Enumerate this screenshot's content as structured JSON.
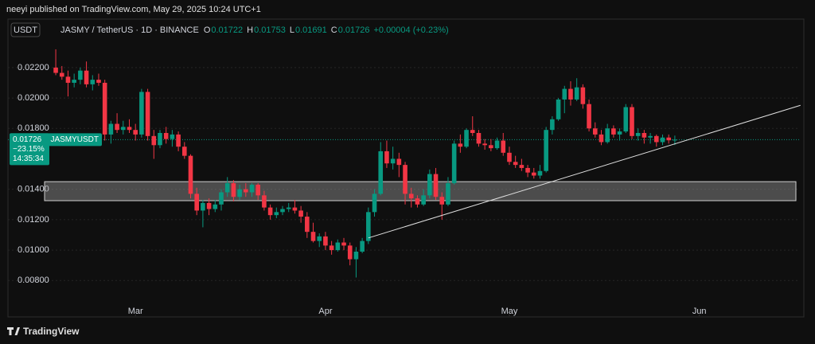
{
  "header": {
    "publisher": "neeyi published on TradingView.com, May 29, 2025 10:24 UTC+1",
    "currency": "USDT",
    "footer": "TradingView"
  },
  "chart_data": {
    "type": "candlestick",
    "legend": {
      "symbol": "JASMY / TetherUS · 1D · BINANCE",
      "ohlc": [
        {
          "label": "O",
          "value": "0.01722"
        },
        {
          "label": "H",
          "value": "0.01753"
        },
        {
          "label": "L",
          "value": "0.01691"
        },
        {
          "label": "C",
          "value": "0.01726"
        }
      ],
      "change": "+0.00004 (+0.23%)"
    },
    "up_color": "#089981",
    "down_color": "#f23645",
    "open": [
      0.022,
      0.02165,
      0.0214,
      0.021,
      0.0212,
      0.0218,
      0.0209,
      0.0212,
      0.021,
      0.0176,
      0.0183,
      0.0179,
      0.0181,
      0.0179,
      0.0176,
      0.0204,
      0.0175,
      0.0169,
      0.0177,
      0.0173,
      0.0176,
      0.0168,
      0.0162,
      0.0137,
      0.0126,
      0.0131,
      0.0127,
      0.013,
      0.0138,
      0.0144,
      0.0135,
      0.014,
      0.0138,
      0.0143,
      0.0136,
      0.0128,
      0.0123,
      0.0125,
      0.0127,
      0.0128,
      0.0126,
      0.0122,
      0.0112,
      0.0106,
      0.0109,
      0.0103,
      0.01,
      0.0105,
      0.0103,
      0.0094,
      0.0099,
      0.0106,
      0.0125,
      0.0137,
      0.0165,
      0.0157,
      0.016,
      0.0156,
      0.0137,
      0.0134,
      0.013,
      0.0136,
      0.015,
      0.0135,
      0.013,
      0.0144,
      0.017,
      0.0168,
      0.0179,
      0.0177,
      0.017,
      0.0169,
      0.0167,
      0.0172,
      0.0164,
      0.0158,
      0.0156,
      0.0154,
      0.0151,
      0.0149,
      0.0152,
      0.0179,
      0.0186,
      0.0199,
      0.0206,
      0.0199,
      0.0207,
      0.0196,
      0.018,
      0.0176,
      0.0171,
      0.018,
      0.0176,
      0.0178,
      0.0194,
      0.0175,
      0.0177,
      0.0174,
      0.0175,
      0.0171,
      0.0174,
      0.01722
    ],
    "high": [
      0.0232,
      0.0221,
      0.0218,
      0.0216,
      0.022,
      0.0224,
      0.0215,
      0.0216,
      0.0212,
      0.0185,
      0.019,
      0.0185,
      0.0186,
      0.0183,
      0.0206,
      0.0206,
      0.0179,
      0.0179,
      0.0181,
      0.0179,
      0.0178,
      0.0171,
      0.0163,
      0.0141,
      0.0133,
      0.0134,
      0.0133,
      0.014,
      0.0148,
      0.0146,
      0.0143,
      0.0144,
      0.0144,
      0.0144,
      0.0139,
      0.013,
      0.0128,
      0.0129,
      0.0131,
      0.0133,
      0.0129,
      0.0125,
      0.0118,
      0.0111,
      0.0112,
      0.0106,
      0.0107,
      0.0108,
      0.0105,
      0.0102,
      0.0108,
      0.0128,
      0.014,
      0.0171,
      0.0172,
      0.0168,
      0.0164,
      0.0158,
      0.0141,
      0.0136,
      0.014,
      0.0153,
      0.0154,
      0.0138,
      0.0148,
      0.0172,
      0.0176,
      0.018,
      0.0188,
      0.0179,
      0.0173,
      0.0173,
      0.0174,
      0.0177,
      0.0168,
      0.0162,
      0.016,
      0.0156,
      0.0154,
      0.0156,
      0.0181,
      0.0188,
      0.02,
      0.0208,
      0.0211,
      0.0213,
      0.0209,
      0.0199,
      0.0184,
      0.0179,
      0.0183,
      0.0182,
      0.018,
      0.0196,
      0.0196,
      0.018,
      0.0179,
      0.0177,
      0.0176,
      0.0176,
      0.0176,
      0.01753
    ],
    "low": [
      0.0215,
      0.0212,
      0.0201,
      0.0207,
      0.0209,
      0.0207,
      0.0205,
      0.0208,
      0.0172,
      0.017,
      0.0177,
      0.0176,
      0.0177,
      0.0172,
      0.0174,
      0.0172,
      0.016,
      0.0167,
      0.017,
      0.0168,
      0.0165,
      0.016,
      0.0134,
      0.0123,
      0.0115,
      0.0123,
      0.0125,
      0.0126,
      0.0135,
      0.0132,
      0.0133,
      0.0135,
      0.0135,
      0.0133,
      0.0126,
      0.012,
      0.0121,
      0.0123,
      0.0125,
      0.0124,
      0.0118,
      0.0108,
      0.0105,
      0.0102,
      0.01,
      0.0097,
      0.0099,
      0.01,
      0.009,
      0.0082,
      0.0098,
      0.0104,
      0.0122,
      0.0136,
      0.0154,
      0.0153,
      0.0148,
      0.013,
      0.0128,
      0.0128,
      0.0129,
      0.0134,
      0.0133,
      0.012,
      0.0129,
      0.0143,
      0.0164,
      0.0167,
      0.0175,
      0.0168,
      0.0166,
      0.0165,
      0.0166,
      0.0162,
      0.0156,
      0.0154,
      0.0152,
      0.0148,
      0.0147,
      0.0147,
      0.0151,
      0.0176,
      0.0185,
      0.019,
      0.0195,
      0.0198,
      0.0193,
      0.0178,
      0.0174,
      0.0169,
      0.017,
      0.0174,
      0.0172,
      0.0177,
      0.0173,
      0.0172,
      0.017,
      0.017,
      0.0168,
      0.0169,
      0.017,
      0.01691
    ],
    "close": [
      0.02165,
      0.0214,
      0.021,
      0.0212,
      0.0218,
      0.0209,
      0.0212,
      0.021,
      0.0176,
      0.0183,
      0.0179,
      0.0181,
      0.0179,
      0.0176,
      0.0204,
      0.0175,
      0.0169,
      0.0177,
      0.0173,
      0.0176,
      0.0168,
      0.0162,
      0.0137,
      0.0126,
      0.0131,
      0.0127,
      0.013,
      0.0138,
      0.0144,
      0.0135,
      0.014,
      0.0138,
      0.0143,
      0.0136,
      0.0128,
      0.0123,
      0.0125,
      0.0127,
      0.0128,
      0.0126,
      0.0122,
      0.0112,
      0.0106,
      0.0109,
      0.0103,
      0.01,
      0.0105,
      0.0103,
      0.0094,
      0.0099,
      0.0106,
      0.0125,
      0.0137,
      0.0165,
      0.0157,
      0.016,
      0.0156,
      0.0137,
      0.0134,
      0.013,
      0.0136,
      0.015,
      0.0135,
      0.013,
      0.0144,
      0.017,
      0.0168,
      0.0179,
      0.0177,
      0.017,
      0.0169,
      0.0167,
      0.0172,
      0.0164,
      0.0158,
      0.0156,
      0.0154,
      0.0151,
      0.0149,
      0.0152,
      0.0179,
      0.0186,
      0.0199,
      0.0206,
      0.0199,
      0.0207,
      0.0196,
      0.018,
      0.0176,
      0.0171,
      0.018,
      0.0176,
      0.0178,
      0.0194,
      0.0175,
      0.0177,
      0.0174,
      0.0175,
      0.0171,
      0.0174,
      0.01722,
      0.01726
    ],
    "xlim": [
      -7.8,
      121.4
    ],
    "xticks": [
      {
        "value": 13,
        "label": "Mar"
      },
      {
        "value": 44,
        "label": "Apr"
      },
      {
        "value": 74,
        "label": "May"
      },
      {
        "value": 105,
        "label": "Jun"
      }
    ],
    "ylim": [
      0.00566,
      0.02372
    ],
    "yticks": [
      {
        "value": 0.008,
        "label": "0.00800"
      },
      {
        "value": 0.01,
        "label": "0.01000"
      },
      {
        "value": 0.012,
        "label": "0.01200"
      },
      {
        "value": 0.014,
        "label": "0.01400"
      },
      {
        "value": 0.018,
        "label": "0.01800"
      },
      {
        "value": 0.02,
        "label": "0.02000"
      },
      {
        "value": 0.022,
        "label": "0.02200"
      }
    ],
    "grid": true,
    "zone": [
      0.01325,
      0.0145
    ],
    "trendline": {
      "x": [
        51,
        121.5
      ],
      "y": [
        0.0108,
        0.01952
      ]
    },
    "price_label": {
      "value": 0.01726,
      "symbol": "JASMYUSDT",
      "change": "−23.15%",
      "countdown": "14:35:34"
    }
  }
}
